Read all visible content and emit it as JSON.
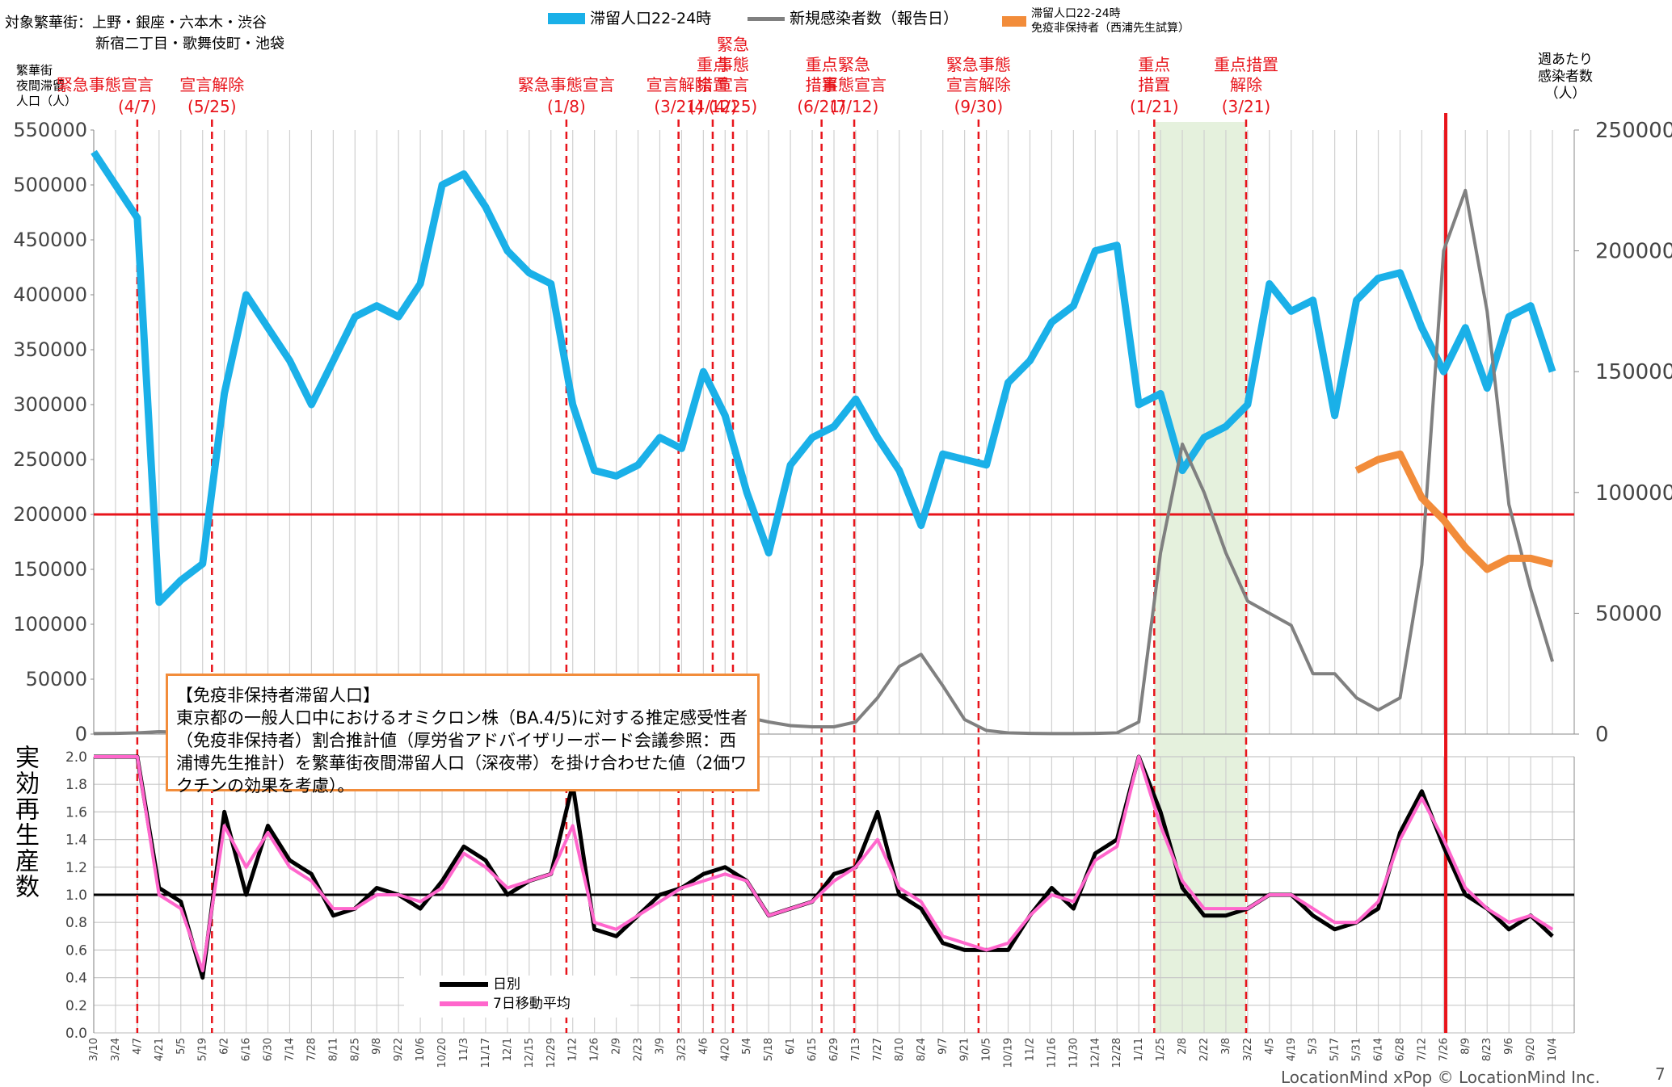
{
  "chart_data": [
    {
      "type": "line",
      "header": [
        "対象繁華街：上野・銀座・六本木・渋谷",
        "新宿二丁目・歌舞伎町・池袋"
      ],
      "y_title": "繁華街\n夜間滞留\n人口（人）",
      "y2_title": "週あたり\n感染者数\n（人）",
      "series": [
        {
          "name": "滞留人口22-24時",
          "color": "#1ab0e8",
          "values": [
            530000,
            500000,
            470000,
            120000,
            140000,
            155000,
            310000,
            400000,
            370000,
            340000,
            300000,
            340000,
            380000,
            390000,
            380000,
            410000,
            500000,
            510000,
            480000,
            440000,
            420000,
            410000,
            300000,
            240000,
            235000,
            245000,
            270000,
            260000,
            330000,
            290000,
            220000,
            165000,
            245000,
            270000,
            280000,
            305000,
            270000,
            240000,
            190000,
            255000,
            250000,
            245000,
            320000,
            340000,
            375000,
            390000,
            440000,
            445000,
            300000,
            310000,
            240000,
            270000,
            280000,
            300000,
            410000,
            385000,
            395000,
            290000,
            395000,
            415000,
            420000,
            370000,
            330000,
            370000,
            315000,
            380000,
            390000,
            330000
          ]
        },
        {
          "name": "新規感染者数（報告日）",
          "color": "#808080",
          "axis": "y2",
          "values": [
            200,
            300,
            500,
            1000,
            800,
            200,
            300,
            1000,
            2500,
            4000,
            3500,
            2000,
            1500,
            1500,
            1200,
            1200,
            1500,
            2500,
            3500,
            4500,
            5500,
            8000,
            12000,
            9000,
            4000,
            2500,
            2000,
            2500,
            4000,
            6000,
            7000,
            5000,
            3500,
            3000,
            3000,
            5000,
            15000,
            28000,
            33000,
            20000,
            6000,
            1500,
            500,
            300,
            200,
            200,
            300,
            500,
            5000,
            75000,
            120000,
            100000,
            75000,
            55000,
            50000,
            45000,
            25000,
            25000,
            15000,
            10000,
            15000,
            70000,
            200000,
            225000,
            175000,
            95000,
            60000,
            30000
          ]
        },
        {
          "name": "滞留人口22-24時\n免疫非保持者（西浦先生試算）",
          "color": "#f28c3a",
          "values": [
            null,
            null,
            null,
            null,
            null,
            null,
            null,
            null,
            null,
            null,
            null,
            null,
            null,
            null,
            null,
            null,
            null,
            null,
            null,
            null,
            null,
            null,
            null,
            null,
            null,
            null,
            null,
            null,
            null,
            null,
            null,
            null,
            null,
            null,
            null,
            null,
            null,
            null,
            null,
            null,
            null,
            null,
            null,
            null,
            null,
            null,
            null,
            null,
            null,
            null,
            null,
            null,
            null,
            null,
            null,
            null,
            null,
            null,
            240000,
            250000,
            255000,
            215000,
            195000,
            170000,
            150000,
            160000,
            160000,
            155000
          ]
        }
      ],
      "ylim": [
        0,
        550000
      ],
      "yticks": [
        0,
        50000,
        100000,
        150000,
        200000,
        250000,
        300000,
        350000,
        400000,
        450000,
        500000,
        550000
      ],
      "y2lim": [
        0,
        250000
      ],
      "y2ticks": [
        0,
        50000,
        100000,
        150000,
        200000,
        250000
      ],
      "reference_line": 200000,
      "grid": true,
      "annotations": [
        {
          "label": "緊急事態宣言",
          "date": "(4/7)"
        },
        {
          "label": "宣言解除",
          "date": "(5/25)"
        },
        {
          "label": "緊急事態宣言",
          "date": "(1/8)"
        },
        {
          "label": "宣言解除",
          "date": "(3/21)"
        },
        {
          "label": "重点\n措置",
          "date": "(4/12)"
        },
        {
          "label": "緊急\n事態\n宣言",
          "date": "(4/25)"
        },
        {
          "label": "重点\n措置",
          "date": "(6/21)"
        },
        {
          "label": "緊急\n事態宣言",
          "date": "(7/12)"
        },
        {
          "label": "緊急事態\n宣言解除",
          "date": "(9/30)"
        },
        {
          "label": "重点\n措置",
          "date": "(1/21)"
        },
        {
          "label": "重点措置\n解除",
          "date": "(3/21)"
        }
      ],
      "note": {
        "title": "【免疫非保持者滞留人口】",
        "text": "東京都の一般人口中におけるオミクロン株（BA.4/5)に対する推定感受性者（免疫非保持者）割合推計値（厚労省アドバイザリーボード会議参照：西浦博先生推計）を繁華街夜間滞留人口（深夜帯）を掛け合わせた値（2価ワクチンの効果を考慮）。"
      }
    },
    {
      "type": "line",
      "y_title": "実効再生産数",
      "categories": [
        "3/10",
        "3/24",
        "4/7",
        "4/21",
        "5/5",
        "5/19",
        "6/2",
        "6/16",
        "6/30",
        "7/14",
        "7/28",
        "8/11",
        "8/25",
        "9/8",
        "9/22",
        "10/6",
        "10/20",
        "11/3",
        "11/17",
        "12/1",
        "12/15",
        "12/29",
        "1/12",
        "1/26",
        "2/9",
        "2/23",
        "3/9",
        "3/23",
        "4/6",
        "4/20",
        "5/4",
        "5/18",
        "6/1",
        "6/15",
        "6/29",
        "7/13",
        "7/27",
        "8/10",
        "8/24",
        "9/7",
        "9/21",
        "10/5",
        "10/19",
        "11/2",
        "11/16",
        "11/30",
        "12/14",
        "12/28",
        "1/11",
        "1/25",
        "2/8",
        "2/22",
        "3/8",
        "3/22",
        "4/5",
        "4/19",
        "5/3",
        "5/17",
        "5/31",
        "6/14",
        "6/28",
        "7/12",
        "7/26",
        "8/9",
        "8/23",
        "9/6",
        "9/20",
        "10/4"
      ],
      "series": [
        {
          "name": "日別",
          "color": "#000000",
          "values": [
            2.0,
            2.0,
            2.0,
            1.05,
            0.95,
            0.4,
            1.6,
            1.0,
            1.5,
            1.25,
            1.15,
            0.85,
            0.9,
            1.05,
            1.0,
            0.9,
            1.1,
            1.35,
            1.25,
            1.0,
            1.1,
            1.15,
            1.8,
            0.75,
            0.7,
            0.85,
            1.0,
            1.05,
            1.15,
            1.2,
            1.1,
            0.85,
            0.9,
            0.95,
            1.15,
            1.2,
            1.6,
            1.0,
            0.9,
            0.65,
            0.6,
            0.6,
            0.6,
            0.85,
            1.05,
            0.9,
            1.3,
            1.4,
            2.0,
            1.6,
            1.05,
            0.85,
            0.85,
            0.9,
            1.0,
            1.0,
            0.85,
            0.75,
            0.8,
            0.9,
            1.45,
            1.75,
            1.35,
            1.0,
            0.9,
            0.75,
            0.85,
            0.7
          ]
        },
        {
          "name": "7日移動平均",
          "color": "#ff66cc",
          "values": [
            2.0,
            2.0,
            2.0,
            1.0,
            0.9,
            0.45,
            1.5,
            1.2,
            1.45,
            1.2,
            1.1,
            0.9,
            0.9,
            1.0,
            1.0,
            0.95,
            1.05,
            1.3,
            1.2,
            1.05,
            1.1,
            1.15,
            1.5,
            0.8,
            0.75,
            0.85,
            0.95,
            1.05,
            1.1,
            1.15,
            1.1,
            0.85,
            0.9,
            0.95,
            1.1,
            1.2,
            1.4,
            1.05,
            0.95,
            0.7,
            0.65,
            0.6,
            0.65,
            0.85,
            1.0,
            0.95,
            1.25,
            1.35,
            2.0,
            1.5,
            1.1,
            0.9,
            0.9,
            0.9,
            1.0,
            1.0,
            0.9,
            0.8,
            0.8,
            0.95,
            1.4,
            1.7,
            1.4,
            1.05,
            0.9,
            0.8,
            0.85,
            0.75
          ]
        }
      ],
      "ylim": [
        0,
        2
      ],
      "yticks": [
        {
          "value": 0,
          "label": "0.0"
        },
        {
          "value": 0.2,
          "label": "0.2"
        },
        {
          "value": 0.4,
          "label": "0.4"
        },
        {
          "value": 0.6,
          "label": "0.6"
        },
        {
          "value": 0.8,
          "label": "0.8"
        },
        {
          "value": 1,
          "label": "1.0"
        },
        {
          "value": 1.2,
          "label": "1.2"
        },
        {
          "value": 1.4,
          "label": "1.4"
        },
        {
          "value": 1.6,
          "label": "1.6"
        },
        {
          "value": 1.8,
          "label": "1.8"
        },
        {
          "value": 2,
          "label": "2.0"
        }
      ],
      "reference_line": 1,
      "grid": true
    }
  ],
  "footer": "LocationMind xPop © LocationMind Inc.",
  "page_number": "7"
}
